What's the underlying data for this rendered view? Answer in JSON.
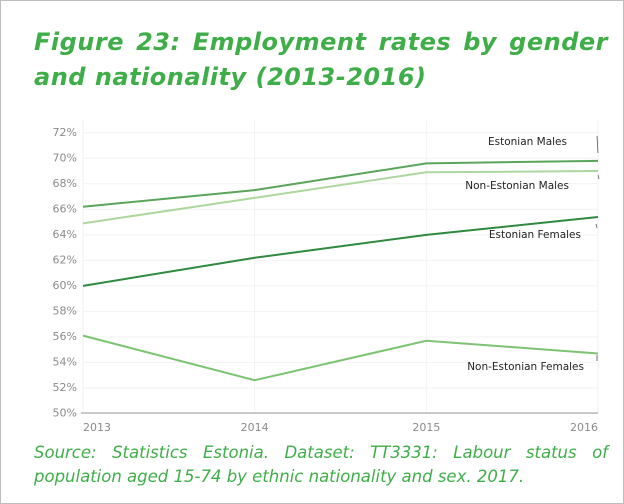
{
  "chart_data": {
    "type": "line",
    "title": "Figure 23: Employment rates by gender and nationality (2013-2016)",
    "source": "Source: Statistics Estonia. Dataset: TT3331: Labour status of population aged 15-74 by ethnic nationality and sex. 2017.",
    "x": [
      2013,
      2014,
      2015,
      2016
    ],
    "xlim": [
      2013,
      2016
    ],
    "xticks": [
      2013,
      2014,
      2015,
      2016
    ],
    "ylim": [
      49.8,
      73
    ],
    "yticks": [
      {
        "value": 50,
        "label": "50%"
      },
      {
        "value": 52,
        "label": "52%"
      },
      {
        "value": 54,
        "label": "54%"
      },
      {
        "value": 56,
        "label": "56%"
      },
      {
        "value": 58,
        "label": "58%"
      },
      {
        "value": 60,
        "label": "60%"
      },
      {
        "value": 62,
        "label": "62%"
      },
      {
        "value": 64,
        "label": "64%"
      },
      {
        "value": 66,
        "label": "66%"
      },
      {
        "value": 68,
        "label": "68%"
      },
      {
        "value": 70,
        "label": "70%"
      },
      {
        "value": 72,
        "label": "72%"
      }
    ],
    "grid": true,
    "series": [
      {
        "name": "Estonian Males",
        "color": "#5aa55a",
        "values": [
          66.2,
          67.5,
          69.6,
          69.8
        ]
      },
      {
        "name": "Non-Estonian Males",
        "color": "#acd89f",
        "values": [
          64.9,
          66.9,
          68.9,
          69.0
        ]
      },
      {
        "name": "Estonian Females",
        "color": "#2f8a3f",
        "values": [
          60.0,
          62.2,
          64.0,
          65.4
        ]
      },
      {
        "name": "Non-Estonian Females",
        "color": "#7cc472",
        "values": [
          56.1,
          52.6,
          55.7,
          54.7
        ]
      }
    ]
  }
}
